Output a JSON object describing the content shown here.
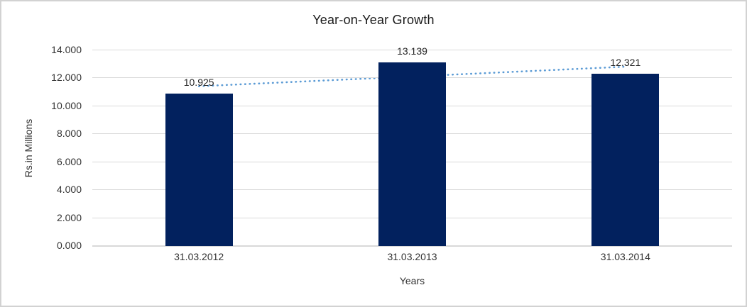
{
  "chart_data": {
    "type": "bar",
    "title": "Year-on-Year Growth",
    "xlabel": "Years",
    "ylabel": "Rs.in Millions",
    "categories": [
      "31.03.2012",
      "31.03.2013",
      "31.03.2014"
    ],
    "values": [
      10.925,
      13.139,
      12.321
    ],
    "data_labels": [
      "10.925",
      "13.139",
      "12.321"
    ],
    "ylim": [
      0,
      14
    ],
    "ytick_step": 2,
    "ytick_labels": [
      "0.000",
      "2.000",
      "4.000",
      "6.000",
      "8.000",
      "10.000",
      "12.000",
      "14.000"
    ],
    "grid": true,
    "legend": "none",
    "bar_color": "#02215E",
    "gridline_color": "#d9d9d9",
    "trendline": {
      "type": "linear",
      "style": "dotted",
      "color": "#5B9BD5",
      "start_value": 11.43,
      "end_value": 12.83
    }
  }
}
